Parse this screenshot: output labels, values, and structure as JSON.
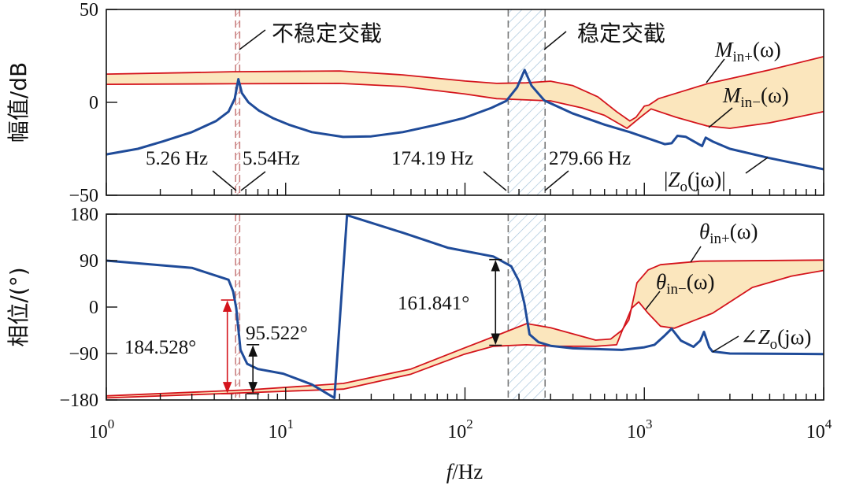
{
  "colors": {
    "red": "#d4141c",
    "blue": "#1f4b99",
    "band_fill": "#fbe6bd",
    "stable_hatch": "#9fc0d8",
    "unstable_hatch": "#c98080",
    "dash": "#777777"
  },
  "chart_data": [
    {
      "type": "line",
      "panel": "magnitude",
      "ylabel": "幅值/dB",
      "xscale": "log",
      "xlim": [
        1,
        10000
      ],
      "ylim": [
        -50,
        50
      ],
      "yticks": [
        "50",
        "0",
        "−50"
      ],
      "ytick_values": [
        50,
        0,
        -50
      ],
      "series": [
        {
          "name": "M_in+(ω)",
          "color": "#d4141c",
          "points": [
            [
              1,
              15.2
            ],
            [
              3,
              16
            ],
            [
              5,
              16.5
            ],
            [
              20,
              16.9
            ],
            [
              45,
              14.8
            ],
            [
              100,
              11.5
            ],
            [
              150,
              10.2
            ],
            [
              220,
              10.5
            ],
            [
              300,
              11.4
            ],
            [
              400,
              9
            ],
            [
              550,
              3
            ],
            [
              700,
              -5
            ],
            [
              830,
              -10
            ],
            [
              900,
              -8
            ],
            [
              1000,
              -2
            ],
            [
              1060,
              -1.5
            ],
            [
              1200,
              2
            ],
            [
              2240,
              10
            ],
            [
              5000,
              17.5
            ],
            [
              10000,
              24.6
            ]
          ]
        },
        {
          "name": "M_in−(ω)",
          "color": "#d4141c",
          "points": [
            [
              1,
              9.7
            ],
            [
              5,
              10
            ],
            [
              20,
              10.2
            ],
            [
              45,
              8.5
            ],
            [
              100,
              4.5
            ],
            [
              150,
              2
            ],
            [
              300,
              0.8
            ],
            [
              450,
              -3
            ],
            [
              600,
              -7
            ],
            [
              800,
              -14
            ],
            [
              950,
              -8
            ],
            [
              1090,
              -3.5
            ],
            [
              1500,
              -8
            ],
            [
              2240,
              -12.7
            ],
            [
              3000,
              -14
            ],
            [
              5000,
              -11
            ],
            [
              10000,
              -5
            ]
          ]
        },
        {
          "name": "|Zo(jω)|",
          "color": "#1f4b99",
          "points": [
            [
              1,
              -28
            ],
            [
              1.5,
              -25
            ],
            [
              2.07,
              -21
            ],
            [
              3,
              -16
            ],
            [
              4.1,
              -10
            ],
            [
              4.8,
              -5
            ],
            [
              5.2,
              2
            ],
            [
              5.45,
              12.5
            ],
            [
              5.7,
              5
            ],
            [
              6.2,
              0
            ],
            [
              7.1,
              -4.5
            ],
            [
              8.5,
              -8.5
            ],
            [
              10.4,
              -12
            ],
            [
              14,
              -16
            ],
            [
              20.9,
              -18.6
            ],
            [
              30,
              -18.3
            ],
            [
              45,
              -16
            ],
            [
              70,
              -12
            ],
            [
              98,
              -8.5
            ],
            [
              140,
              -3
            ],
            [
              170,
              0.8
            ],
            [
              195,
              8
            ],
            [
              215,
              17.4
            ],
            [
              235,
              9
            ],
            [
              277,
              1
            ],
            [
              400,
              -6
            ],
            [
              600,
              -12
            ],
            [
              830,
              -16
            ],
            [
              1300,
              -22.5
            ],
            [
              1420,
              -22
            ],
            [
              1530,
              -18
            ],
            [
              1700,
              -18.5
            ],
            [
              2100,
              -23.5
            ],
            [
              2200,
              -19
            ],
            [
              2400,
              -21
            ],
            [
              3000,
              -25
            ],
            [
              5000,
              -30
            ],
            [
              10000,
              -36
            ]
          ]
        }
      ],
      "labels": {
        "min_plus": {
          "main": "M",
          "sub": "in+",
          "tail": "(ω)"
        },
        "min_minus": {
          "main": "M",
          "sub": "in−",
          "tail": "(ω)"
        },
        "zo": {
          "prefix": "|",
          "main": "Z",
          "sub": "o",
          "tail": "(jω)|"
        }
      },
      "annotations": {
        "unstable": "不稳定交截",
        "stable": "稳定交截",
        "f1": "5.26 Hz",
        "f2": "5.54Hz",
        "f3": "174.19 Hz",
        "f4": "279.66 Hz"
      },
      "crossings_hz": [
        5.26,
        5.54,
        174.19,
        279.66
      ]
    },
    {
      "type": "line",
      "panel": "phase",
      "ylabel": "相位/(°)",
      "xlabel_main": "f",
      "xlabel_tail": "/Hz",
      "xscale": "log",
      "xlim": [
        1,
        10000
      ],
      "ylim": [
        -180,
        180
      ],
      "yticks": [
        "180",
        "90",
        "0",
        "−90",
        "−180"
      ],
      "ytick_values": [
        180,
        90,
        0,
        -90,
        -180
      ],
      "xticks": [
        {
          "base": "10",
          "exp": "0"
        },
        {
          "base": "10",
          "exp": "1"
        },
        {
          "base": "10",
          "exp": "2"
        },
        {
          "base": "10",
          "exp": "3"
        },
        {
          "base": "10",
          "exp": "4"
        }
      ],
      "series": [
        {
          "name": "θin+(ω)",
          "color": "#d4141c",
          "points": [
            [
              1,
              -172
            ],
            [
              6.5,
              -160
            ],
            [
              21,
              -148
            ],
            [
              50,
              -120
            ],
            [
              98,
              -80
            ],
            [
              150,
              -55
            ],
            [
              221,
              -32
            ],
            [
              300,
              -40
            ],
            [
              410,
              -53
            ],
            [
              535,
              -64
            ],
            [
              650,
              -62
            ],
            [
              750,
              -45
            ],
            [
              820,
              -25
            ],
            [
              910,
              47
            ],
            [
              1050,
              72
            ],
            [
              1230,
              82
            ],
            [
              2050,
              89
            ],
            [
              10000,
              91
            ]
          ]
        },
        {
          "name": "θin−(ω)",
          "color": "#d4141c",
          "points": [
            [
              1,
              -176
            ],
            [
              21,
              -159
            ],
            [
              50,
              -130
            ],
            [
              98,
              -92
            ],
            [
              144,
              -76
            ],
            [
              220,
              -73
            ],
            [
              313,
              -76
            ],
            [
              535,
              -76
            ],
            [
              700,
              -73
            ],
            [
              750,
              -47
            ],
            [
              850,
              -2
            ],
            [
              930,
              10
            ],
            [
              1050,
              -12
            ],
            [
              1230,
              -37
            ],
            [
              1470,
              -41
            ],
            [
              2400,
              -12
            ],
            [
              4000,
              38
            ],
            [
              6600,
              60
            ],
            [
              10000,
              71
            ]
          ]
        },
        {
          "name": "∠Zo(jω)",
          "color": "#1f4b99",
          "points": [
            [
              1,
              90
            ],
            [
              3,
              76
            ],
            [
              4.8,
              53
            ],
            [
              5.1,
              30
            ],
            [
              5.3,
              -2
            ],
            [
              5.6,
              -83
            ],
            [
              6.1,
              -110
            ],
            [
              7,
              -120
            ],
            [
              9.7,
              -129
            ],
            [
              14,
              -150
            ],
            [
              18.7,
              -176
            ],
            [
              22,
              178
            ],
            [
              45,
              144
            ],
            [
              80,
              115
            ],
            [
              144,
              98
            ],
            [
              181,
              79
            ],
            [
              200,
              50
            ],
            [
              214,
              8
            ],
            [
              229,
              -53
            ],
            [
              257,
              -68
            ],
            [
              300,
              -75
            ],
            [
              400,
              -80
            ],
            [
              750,
              -83
            ],
            [
              1000,
              -78
            ],
            [
              1140,
              -73
            ],
            [
              1300,
              -55
            ],
            [
              1420,
              -42
            ],
            [
              1600,
              -65
            ],
            [
              1880,
              -77
            ],
            [
              2050,
              -65
            ],
            [
              2150,
              -48
            ],
            [
              2300,
              -78
            ],
            [
              2400,
              -86
            ],
            [
              3000,
              -90
            ],
            [
              10000,
              -91
            ]
          ]
        }
      ],
      "labels": {
        "tin_plus": {
          "main": "θ",
          "sub": "in+",
          "tail": "(ω)"
        },
        "tin_minus": {
          "main": "θ",
          "sub": "in−",
          "tail": "(ω)"
        },
        "zo": {
          "prefix": "∠",
          "main": "Z",
          "sub": "o",
          "tail": "(jω)"
        }
      },
      "annotations": {
        "a1": "184.528°",
        "a2": "95.522°",
        "a3": "161.841°"
      },
      "phase_margins_deg": [
        184.528,
        95.522,
        161.841
      ]
    }
  ]
}
